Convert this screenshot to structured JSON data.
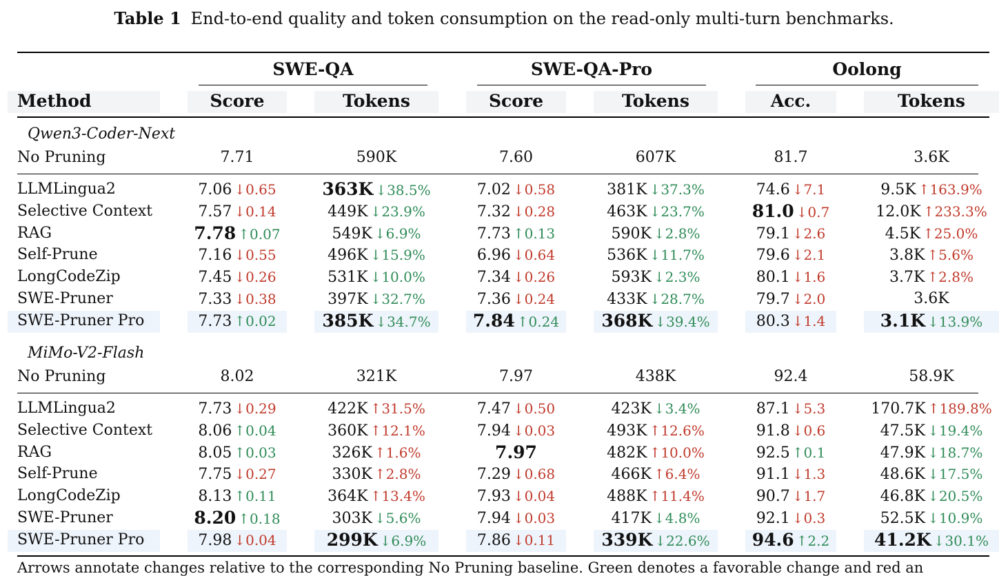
{
  "caption": {
    "label": "Table 1",
    "text": "End-to-end quality and token consumption on the read-only multi-turn benchmarks."
  },
  "header": {
    "groups": [
      "SWE-QA",
      "SWE-QA-Pro",
      "Oolong"
    ],
    "columns": [
      "Method",
      "Score",
      "Tokens",
      "Score",
      "Tokens",
      "Acc.",
      "Tokens"
    ]
  },
  "colors": {
    "improvement": "#2e8b57",
    "degradation": "#c0392b",
    "highlight": "#eef4fb",
    "header_bg": "#f3f4f6"
  },
  "sections": [
    {
      "model": "Qwen3-Coder-Next",
      "baseline": {
        "method": "No Pruning",
        "cells": [
          "7.71",
          "590K",
          "7.60",
          "607K",
          "81.7",
          "3.6K"
        ]
      },
      "rows": [
        {
          "method": "LLMLingua2",
          "highlight": false,
          "cells": [
            {
              "v": "7.06",
              "d": "↓0.65",
              "c": "red"
            },
            {
              "v": "363K",
              "d": "↓38.5%",
              "c": "green",
              "b": true
            },
            {
              "v": "7.02",
              "d": "↓0.58",
              "c": "red"
            },
            {
              "v": "381K",
              "d": "↓37.3%",
              "c": "green"
            },
            {
              "v": "74.6",
              "d": "↓7.1",
              "c": "red"
            },
            {
              "v": "9.5K",
              "d": "↑163.9%",
              "c": "red"
            }
          ]
        },
        {
          "method": "Selective Context",
          "highlight": false,
          "cells": [
            {
              "v": "7.57",
              "d": "↓0.14",
              "c": "red"
            },
            {
              "v": "449K",
              "d": "↓23.9%",
              "c": "green"
            },
            {
              "v": "7.32",
              "d": "↓0.28",
              "c": "red"
            },
            {
              "v": "463K",
              "d": "↓23.7%",
              "c": "green"
            },
            {
              "v": "81.0",
              "d": "↓0.7",
              "c": "red",
              "b": true
            },
            {
              "v": "12.0K",
              "d": "↑233.3%",
              "c": "red"
            }
          ]
        },
        {
          "method": "RAG",
          "highlight": false,
          "cells": [
            {
              "v": "7.78",
              "d": "↑0.07",
              "c": "green",
              "b": true
            },
            {
              "v": "549K",
              "d": "↓6.9%",
              "c": "green"
            },
            {
              "v": "7.73",
              "d": "↑0.13",
              "c": "green"
            },
            {
              "v": "590K",
              "d": "↓2.8%",
              "c": "green"
            },
            {
              "v": "79.1",
              "d": "↓2.6",
              "c": "red"
            },
            {
              "v": "4.5K",
              "d": "↑25.0%",
              "c": "red"
            }
          ]
        },
        {
          "method": "Self-Prune",
          "highlight": false,
          "cells": [
            {
              "v": "7.16",
              "d": "↓0.55",
              "c": "red"
            },
            {
              "v": "496K",
              "d": "↓15.9%",
              "c": "green"
            },
            {
              "v": "6.96",
              "d": "↓0.64",
              "c": "red"
            },
            {
              "v": "536K",
              "d": "↓11.7%",
              "c": "green"
            },
            {
              "v": "79.6",
              "d": "↓2.1",
              "c": "red"
            },
            {
              "v": "3.8K",
              "d": "↑5.6%",
              "c": "red"
            }
          ]
        },
        {
          "method": "LongCodeZip",
          "highlight": false,
          "cells": [
            {
              "v": "7.45",
              "d": "↓0.26",
              "c": "red"
            },
            {
              "v": "531K",
              "d": "↓10.0%",
              "c": "green"
            },
            {
              "v": "7.34",
              "d": "↓0.26",
              "c": "red"
            },
            {
              "v": "593K",
              "d": "↓2.3%",
              "c": "green"
            },
            {
              "v": "80.1",
              "d": "↓1.6",
              "c": "red"
            },
            {
              "v": "3.7K",
              "d": "↑2.8%",
              "c": "red"
            }
          ]
        },
        {
          "method": "SWE-Pruner",
          "highlight": false,
          "cells": [
            {
              "v": "7.33",
              "d": "↓0.38",
              "c": "red"
            },
            {
              "v": "397K",
              "d": "↓32.7%",
              "c": "green"
            },
            {
              "v": "7.36",
              "d": "↓0.24",
              "c": "red"
            },
            {
              "v": "433K",
              "d": "↓28.7%",
              "c": "green"
            },
            {
              "v": "79.7",
              "d": "↓2.0",
              "c": "red"
            },
            {
              "v": "3.6K",
              "d": "",
              "c": ""
            }
          ]
        },
        {
          "method": "SWE-Pruner Pro",
          "highlight": true,
          "cells": [
            {
              "v": "7.73",
              "d": "↑0.02",
              "c": "green"
            },
            {
              "v": "385K",
              "d": "↓34.7%",
              "c": "green",
              "b": true
            },
            {
              "v": "7.84",
              "d": "↑0.24",
              "c": "green",
              "b": true
            },
            {
              "v": "368K",
              "d": "↓39.4%",
              "c": "green",
              "b": true
            },
            {
              "v": "80.3",
              "d": "↓1.4",
              "c": "red"
            },
            {
              "v": "3.1K",
              "d": "↓13.9%",
              "c": "green",
              "b": true
            }
          ]
        }
      ]
    },
    {
      "model": "MiMo-V2-Flash",
      "baseline": {
        "method": "No Pruning",
        "cells": [
          "8.02",
          "321K",
          "7.97",
          "438K",
          "92.4",
          "58.9K"
        ]
      },
      "rows": [
        {
          "method": "LLMLingua2",
          "highlight": false,
          "cells": [
            {
              "v": "7.73",
              "d": "↓0.29",
              "c": "red"
            },
            {
              "v": "422K",
              "d": "↑31.5%",
              "c": "red"
            },
            {
              "v": "7.47",
              "d": "↓0.50",
              "c": "red"
            },
            {
              "v": "423K",
              "d": "↓3.4%",
              "c": "green"
            },
            {
              "v": "87.1",
              "d": "↓5.3",
              "c": "red"
            },
            {
              "v": "170.7K",
              "d": "↑189.8%",
              "c": "red"
            }
          ]
        },
        {
          "method": "Selective Context",
          "highlight": false,
          "cells": [
            {
              "v": "8.06",
              "d": "↑0.04",
              "c": "green"
            },
            {
              "v": "360K",
              "d": "↑12.1%",
              "c": "red"
            },
            {
              "v": "7.94",
              "d": "↓0.03",
              "c": "red"
            },
            {
              "v": "493K",
              "d": "↑12.6%",
              "c": "red"
            },
            {
              "v": "91.8",
              "d": "↓0.6",
              "c": "red"
            },
            {
              "v": "47.5K",
              "d": "↓19.4%",
              "c": "green"
            }
          ]
        },
        {
          "method": "RAG",
          "highlight": false,
          "cells": [
            {
              "v": "8.05",
              "d": "↑0.03",
              "c": "green"
            },
            {
              "v": "326K",
              "d": "↑1.6%",
              "c": "red"
            },
            {
              "v": "7.97",
              "d": "",
              "c": "",
              "b": true
            },
            {
              "v": "482K",
              "d": "↑10.0%",
              "c": "red"
            },
            {
              "v": "92.5",
              "d": "↑0.1",
              "c": "green"
            },
            {
              "v": "47.9K",
              "d": "↓18.7%",
              "c": "green"
            }
          ]
        },
        {
          "method": "Self-Prune",
          "highlight": false,
          "cells": [
            {
              "v": "7.75",
              "d": "↓0.27",
              "c": "red"
            },
            {
              "v": "330K",
              "d": "↑2.8%",
              "c": "red"
            },
            {
              "v": "7.29",
              "d": "↓0.68",
              "c": "red"
            },
            {
              "v": "466K",
              "d": "↑6.4%",
              "c": "red"
            },
            {
              "v": "91.1",
              "d": "↓1.3",
              "c": "red"
            },
            {
              "v": "48.6K",
              "d": "↓17.5%",
              "c": "green"
            }
          ]
        },
        {
          "method": "LongCodeZip",
          "highlight": false,
          "cells": [
            {
              "v": "8.13",
              "d": "↑0.11",
              "c": "green"
            },
            {
              "v": "364K",
              "d": "↑13.4%",
              "c": "red"
            },
            {
              "v": "7.93",
              "d": "↓0.04",
              "c": "red"
            },
            {
              "v": "488K",
              "d": "↑11.4%",
              "c": "red"
            },
            {
              "v": "90.7",
              "d": "↓1.7",
              "c": "red"
            },
            {
              "v": "46.8K",
              "d": "↓20.5%",
              "c": "green"
            }
          ]
        },
        {
          "method": "SWE-Pruner",
          "highlight": false,
          "cells": [
            {
              "v": "8.20",
              "d": "↑0.18",
              "c": "green",
              "b": true
            },
            {
              "v": "303K",
              "d": "↓5.6%",
              "c": "green"
            },
            {
              "v": "7.94",
              "d": "↓0.03",
              "c": "red"
            },
            {
              "v": "417K",
              "d": "↓4.8%",
              "c": "green"
            },
            {
              "v": "92.1",
              "d": "↓0.3",
              "c": "red"
            },
            {
              "v": "52.5K",
              "d": "↓10.9%",
              "c": "green"
            }
          ]
        },
        {
          "method": "SWE-Pruner Pro",
          "highlight": true,
          "cells": [
            {
              "v": "7.98",
              "d": "↓0.04",
              "c": "red"
            },
            {
              "v": "299K",
              "d": "↓6.9%",
              "c": "green",
              "b": true
            },
            {
              "v": "7.86",
              "d": "↓0.11",
              "c": "red"
            },
            {
              "v": "339K",
              "d": "↓22.6%",
              "c": "green",
              "b": true
            },
            {
              "v": "94.6",
              "d": "↑2.2",
              "c": "green",
              "b": true
            },
            {
              "v": "41.2K",
              "d": "↓30.1%",
              "c": "green",
              "b": true
            }
          ]
        }
      ]
    }
  ],
  "footnote": "Arrows annotate changes relative to the corresponding No Pruning baseline. Green denotes a favorable change and red an"
}
